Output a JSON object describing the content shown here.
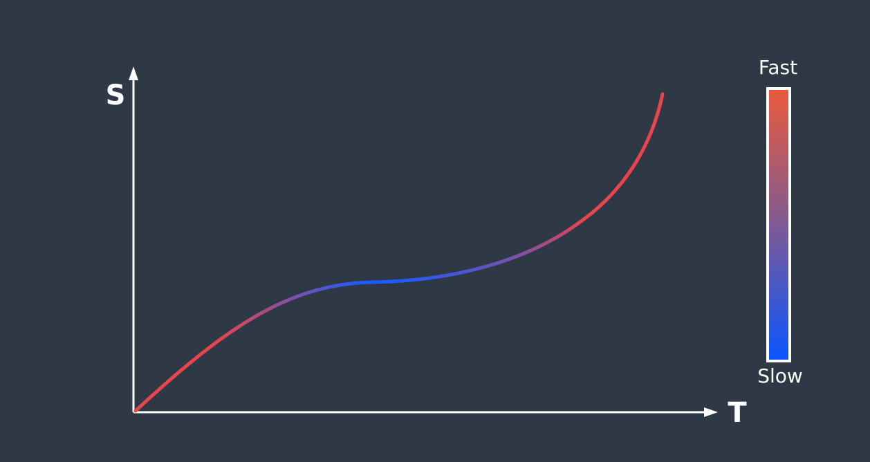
{
  "axes": {
    "y_label": "S",
    "x_label": "T"
  },
  "legend": {
    "top": "Fast",
    "bottom": "Slow"
  }
}
